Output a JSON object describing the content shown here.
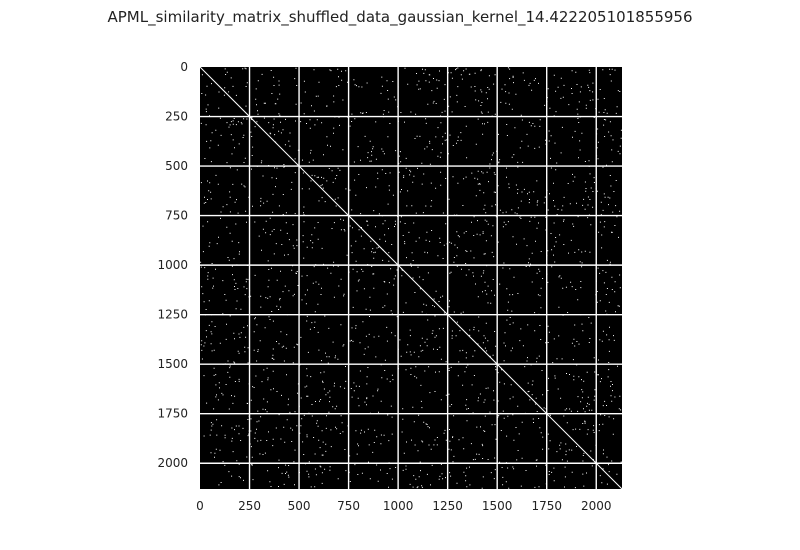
{
  "chart_data": {
    "type": "heatmap",
    "title": "APML_similarity_matrix_shuffled_data_gaussian_kernel_14.422205101855956",
    "xlabel": "",
    "ylabel": "",
    "matrix_size": 2130,
    "xlim": [
      0,
      2130
    ],
    "ylim": [
      2130,
      0
    ],
    "x_ticks": [
      0,
      250,
      500,
      750,
      1000,
      1250,
      1500,
      1750,
      2000
    ],
    "y_ticks": [
      0,
      250,
      500,
      750,
      1000,
      1250,
      1500,
      1750,
      2000
    ],
    "x_tick_labels": [
      "0",
      "250",
      "500",
      "750",
      "1000",
      "1250",
      "1500",
      "1750",
      "2000"
    ],
    "y_tick_labels": [
      "0",
      "250",
      "500",
      "750",
      "1000",
      "1250",
      "1500",
      "1750",
      "2000"
    ],
    "colormap": "binary (black = 0, white = 1)",
    "background_color": "#000000",
    "foreground_color": "#ffffff",
    "grid": true,
    "grid_color": "#ffffff",
    "diagonal": "white (self-similarity = 1)",
    "sparse_white_point_density": 0.012
  }
}
